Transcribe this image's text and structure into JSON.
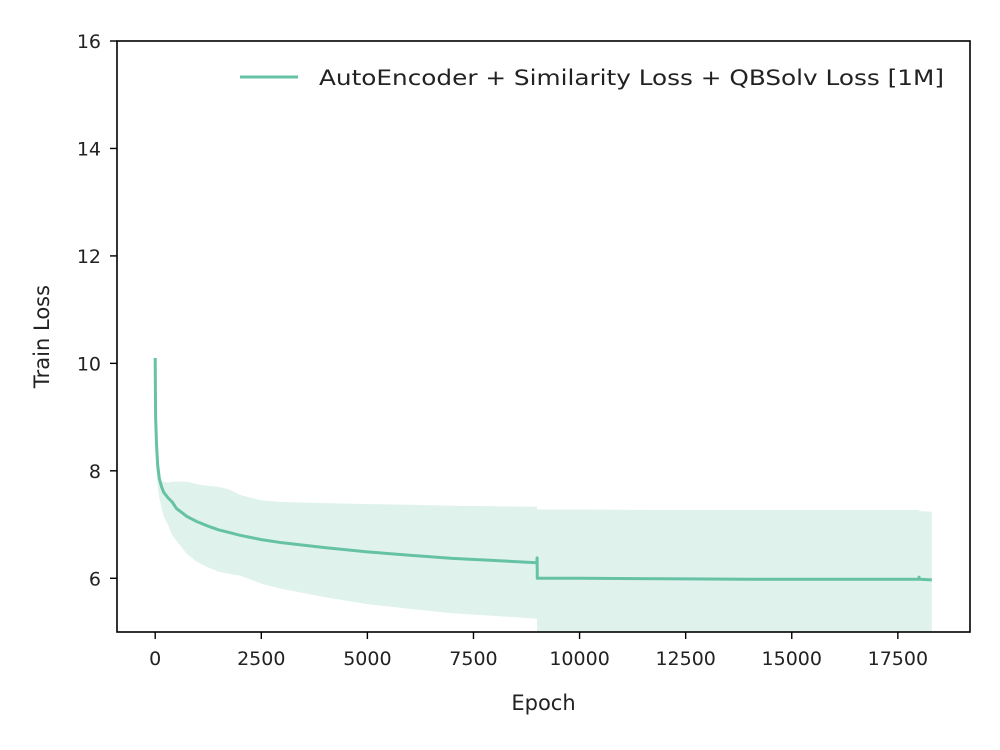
{
  "chart_data": {
    "type": "line",
    "title": "",
    "xlabel": "Epoch",
    "ylabel": "Train Loss",
    "xlim": [
      -900,
      19200
    ],
    "ylim": [
      5.0,
      16.0
    ],
    "xticks": [
      0,
      2500,
      5000,
      7500,
      10000,
      12500,
      15000,
      17500
    ],
    "yticks": [
      6,
      8,
      10,
      12,
      14,
      16
    ],
    "grid": false,
    "legend_position": "top-right",
    "series": [
      {
        "name": "AutoEncoder + Similarity Loss + QBSolv Loss [1M]",
        "color": "#66c2a5",
        "band_color": "#dff2ec",
        "x": [
          0,
          10,
          30,
          60,
          100,
          150,
          200,
          300,
          400,
          500,
          750,
          1000,
          1250,
          1500,
          1750,
          2000,
          2500,
          3000,
          4000,
          5000,
          6000,
          7000,
          8000,
          8995,
          9000,
          9005,
          10000,
          12000,
          14000,
          16000,
          17990,
          18000,
          18010,
          18300
        ],
        "y": [
          10.1,
          9.0,
          8.5,
          8.1,
          7.85,
          7.7,
          7.6,
          7.5,
          7.42,
          7.3,
          7.15,
          7.05,
          6.97,
          6.9,
          6.85,
          6.8,
          6.72,
          6.66,
          6.57,
          6.49,
          6.43,
          6.37,
          6.33,
          6.29,
          6.38,
          6.0,
          6.0,
          5.99,
          5.98,
          5.98,
          5.98,
          6.02,
          5.98,
          5.97
        ],
        "upper": [
          10.1,
          8.5,
          8.1,
          7.95,
          7.85,
          7.8,
          7.8,
          7.78,
          7.8,
          7.8,
          7.8,
          7.75,
          7.72,
          7.7,
          7.65,
          7.55,
          7.45,
          7.42,
          7.4,
          7.38,
          7.37,
          7.35,
          7.34,
          7.33,
          7.28,
          7.28,
          7.28,
          7.27,
          7.27,
          7.27,
          7.27,
          7.25,
          7.25,
          7.24
        ],
        "lower": [
          10.1,
          8.5,
          8.0,
          7.7,
          7.5,
          7.3,
          7.15,
          7.0,
          6.8,
          6.7,
          6.45,
          6.3,
          6.2,
          6.12,
          6.08,
          6.05,
          5.9,
          5.8,
          5.65,
          5.52,
          5.43,
          5.35,
          5.3,
          5.25,
          5.0,
          5.0,
          5.0,
          5.0,
          5.0,
          5.0,
          5.0,
          5.0,
          5.0,
          5.0
        ]
      }
    ]
  }
}
